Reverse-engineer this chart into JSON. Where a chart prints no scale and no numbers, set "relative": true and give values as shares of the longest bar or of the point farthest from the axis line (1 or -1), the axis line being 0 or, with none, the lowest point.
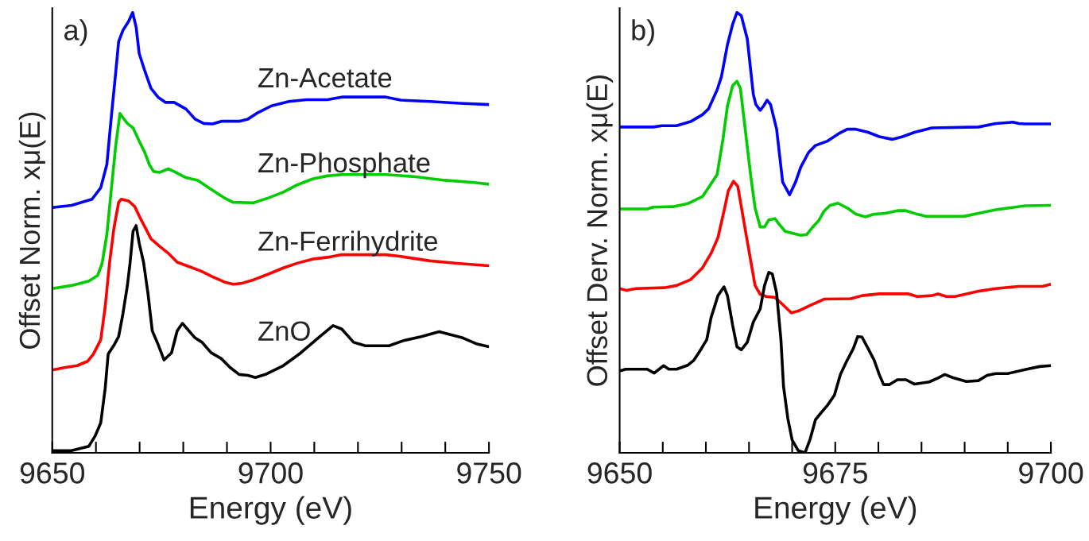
{
  "chart_data": [
    {
      "type": "line",
      "relative": true,
      "xlabel": "Energy (eV)",
      "ylabel": "Offset Norm. xμ(E)",
      "annotations": [
        "a)"
      ],
      "tick_labels": "x",
      "grid": false,
      "legend": false,
      "marker": "none",
      "line_style": "solid",
      "xlim": [
        9650,
        9750
      ],
      "xticks": [
        9650,
        {
          "value": 9660,
          "label": null
        },
        {
          "value": 9670,
          "label": null
        },
        {
          "value": 9680,
          "label": null
        },
        {
          "value": 9690,
          "label": null
        },
        9700,
        {
          "value": 9710,
          "label": null
        },
        {
          "value": 9720,
          "label": null
        },
        {
          "value": 9730,
          "label": null
        },
        {
          "value": 9740,
          "label": null
        },
        9750
      ],
      "series": [
        {
          "name": "Zn-Acetate",
          "color": "#0000ff",
          "x": [
            9650,
            9654.4,
            9659.1,
            9661.1,
            9662.5,
            9663.5,
            9664.5,
            9665.2,
            9666.2,
            9667.5,
            9668.4,
            9669.2,
            9669.9,
            9671.2,
            9672.6,
            9674.2,
            9675.9,
            9677.9,
            9680.6,
            9682.7,
            9684.7,
            9686.7,
            9688.7,
            9692.8,
            9694.8,
            9696.8,
            9700.2,
            9704.2,
            9708.2,
            9713.0,
            9716.3,
            9726.4,
            9729.8,
            9736.5,
            9743.3,
            9750
          ],
          "values": [
            0.557,
            0.562,
            0.576,
            0.602,
            0.655,
            0.761,
            0.861,
            0.934,
            0.96,
            0.98,
            1.0,
            0.967,
            0.907,
            0.867,
            0.828,
            0.808,
            0.796,
            0.796,
            0.781,
            0.758,
            0.748,
            0.747,
            0.753,
            0.753,
            0.758,
            0.771,
            0.788,
            0.798,
            0.802,
            0.802,
            0.808,
            0.808,
            0.801,
            0.798,
            0.794,
            0.791
          ]
        },
        {
          "name": "Zn-Phosphate",
          "color": "#00cc00",
          "x": [
            9650,
            9654.4,
            9658.4,
            9660.4,
            9661.4,
            9662.5,
            9663.5,
            9664.5,
            9665.5,
            9666.2,
            9667.2,
            9668.5,
            9669.9,
            9671.2,
            9672.2,
            9673.2,
            9674.6,
            9676.6,
            9677.9,
            9680.6,
            9683.3,
            9685.4,
            9687.4,
            9689.4,
            9691.4,
            9696.1,
            9699.5,
            9702.9,
            9706.2,
            9709.6,
            9713.0,
            9716.3,
            9726.4,
            9733.2,
            9739.9,
            9746.6,
            9750
          ],
          "values": [
            0.373,
            0.38,
            0.39,
            0.403,
            0.43,
            0.496,
            0.596,
            0.695,
            0.771,
            0.761,
            0.748,
            0.738,
            0.708,
            0.682,
            0.655,
            0.639,
            0.637,
            0.645,
            0.639,
            0.625,
            0.619,
            0.605,
            0.592,
            0.579,
            0.569,
            0.568,
            0.579,
            0.592,
            0.609,
            0.622,
            0.629,
            0.632,
            0.632,
            0.627,
            0.619,
            0.614,
            0.61
          ]
        },
        {
          "name": "Zn-Ferrihydrite",
          "color": "#ff0000",
          "x": [
            9650,
            9653.0,
            9655.7,
            9658.1,
            9659.4,
            9661.1,
            9662.1,
            9663.1,
            9664.1,
            9665.2,
            9665.8,
            9667.5,
            9668.9,
            9670.2,
            9671.2,
            9672.6,
            9674.6,
            9676.6,
            9678.6,
            9681.3,
            9684.0,
            9686.7,
            9689.4,
            9691.4,
            9693.4,
            9696.1,
            9699.5,
            9702.9,
            9706.2,
            9709.6,
            9713.0,
            9716.3,
            9726.4,
            9729.8,
            9736.5,
            9743.3,
            9750
          ],
          "values": [
            0.188,
            0.194,
            0.198,
            0.208,
            0.224,
            0.257,
            0.33,
            0.43,
            0.509,
            0.569,
            0.576,
            0.572,
            0.559,
            0.532,
            0.513,
            0.486,
            0.469,
            0.453,
            0.433,
            0.423,
            0.413,
            0.4,
            0.388,
            0.383,
            0.385,
            0.393,
            0.406,
            0.42,
            0.431,
            0.44,
            0.444,
            0.45,
            0.45,
            0.446,
            0.436,
            0.43,
            0.425
          ]
        },
        {
          "name": "ZnO",
          "color": "#000000",
          "x": [
            9650,
            9654.4,
            9658.4,
            9659.8,
            9661.1,
            9662.1,
            9662.8,
            9664.1,
            9665.2,
            9666.2,
            9667.2,
            9667.8,
            9668.5,
            9669.2,
            9669.9,
            9670.9,
            9671.9,
            9672.9,
            9674.2,
            9675.6,
            9677.3,
            9678.6,
            9679.8,
            9681.3,
            9682.7,
            9684.3,
            9686.4,
            9688.7,
            9690.7,
            9692.8,
            9694.8,
            9696.5,
            9698.8,
            9702.9,
            9706.9,
            9710.9,
            9714.3,
            9716.3,
            9719.0,
            9721.7,
            9727.1,
            9730.5,
            9734.5,
            9738.6,
            9744.0,
            9747.3,
            9750
          ],
          "values": [
            0.005,
            0.005,
            0.015,
            0.038,
            0.068,
            0.145,
            0.224,
            0.244,
            0.264,
            0.317,
            0.38,
            0.43,
            0.503,
            0.516,
            0.476,
            0.433,
            0.363,
            0.277,
            0.247,
            0.211,
            0.227,
            0.277,
            0.294,
            0.277,
            0.261,
            0.251,
            0.227,
            0.214,
            0.194,
            0.178,
            0.176,
            0.171,
            0.178,
            0.198,
            0.227,
            0.261,
            0.289,
            0.281,
            0.251,
            0.243,
            0.243,
            0.255,
            0.264,
            0.275,
            0.261,
            0.247,
            0.241
          ]
        }
      ]
    },
    {
      "type": "line",
      "relative": true,
      "xlabel": "Energy (eV)",
      "ylabel": "Offset Derv. Norm. xμ(E)",
      "annotations": [
        "b)"
      ],
      "tick_labels": "x",
      "grid": false,
      "legend": false,
      "marker": "none",
      "line_style": "solid",
      "xlim": [
        9650,
        9700
      ],
      "xticks": [
        9650,
        {
          "value": 9655,
          "label": null
        },
        {
          "value": 9660,
          "label": null
        },
        {
          "value": 9665,
          "label": null
        },
        {
          "value": 9670,
          "label": null
        },
        9675,
        {
          "value": 9680,
          "label": null
        },
        {
          "value": 9685,
          "label": null
        },
        {
          "value": 9690,
          "label": null
        },
        {
          "value": 9695,
          "label": null
        },
        9700
      ],
      "series": [
        {
          "color": "#0000ff",
          "x": [
            9650,
            9653.9,
            9654.9,
            9656.6,
            9658.3,
            9659.6,
            9660.3,
            9661.3,
            9661.8,
            9662.5,
            9663.1,
            9663.6,
            9664.1,
            9664.8,
            9665.5,
            9665.8,
            9666.3,
            9666.7,
            9667.1,
            9667.5,
            9668.2,
            9668.9,
            9669.7,
            9670.4,
            9671.0,
            9671.9,
            9672.7,
            9674.1,
            9675.4,
            9676.4,
            9677.4,
            9678.8,
            9680.1,
            9681.6,
            9682.8,
            9684.2,
            9686.2,
            9691.6,
            9693.6,
            9695.6,
            9696.3,
            9697.0,
            9700
          ],
          "values": [
            0.74,
            0.74,
            0.743,
            0.743,
            0.753,
            0.768,
            0.781,
            0.824,
            0.854,
            0.927,
            0.973,
            1.0,
            0.993,
            0.94,
            0.814,
            0.791,
            0.778,
            0.788,
            0.801,
            0.791,
            0.735,
            0.615,
            0.586,
            0.615,
            0.649,
            0.682,
            0.698,
            0.708,
            0.725,
            0.735,
            0.735,
            0.728,
            0.718,
            0.712,
            0.718,
            0.728,
            0.738,
            0.74,
            0.748,
            0.751,
            0.748,
            0.747,
            0.747
          ]
        },
        {
          "color": "#00cc00",
          "x": [
            9650,
            9653.2,
            9653.9,
            9656.2,
            9657.9,
            9659.6,
            9660.3,
            9661.3,
            9662.0,
            9662.5,
            9663.1,
            9663.6,
            9664.0,
            9664.6,
            9665.2,
            9665.7,
            9666.3,
            9666.8,
            9667.3,
            9668.0,
            9668.5,
            9669.2,
            9670.0,
            9671.0,
            9671.7,
            9672.4,
            9673.1,
            9673.7,
            9674.4,
            9675.3,
            9676.4,
            9677.4,
            9678.5,
            9679.5,
            9680.8,
            9682.2,
            9683.2,
            9684.5,
            9685.5,
            9689.9,
            9691.6,
            9693.6,
            9697.0,
            9700
          ],
          "values": [
            0.554,
            0.554,
            0.558,
            0.559,
            0.566,
            0.582,
            0.602,
            0.632,
            0.715,
            0.788,
            0.834,
            0.844,
            0.828,
            0.728,
            0.629,
            0.556,
            0.513,
            0.513,
            0.529,
            0.532,
            0.519,
            0.503,
            0.499,
            0.494,
            0.496,
            0.513,
            0.528,
            0.549,
            0.562,
            0.567,
            0.556,
            0.542,
            0.536,
            0.542,
            0.544,
            0.55,
            0.55,
            0.542,
            0.537,
            0.537,
            0.544,
            0.552,
            0.561,
            0.562
          ]
        },
        {
          "color": "#ff0000",
          "x": [
            9650,
            9650.8,
            9651.9,
            9655.2,
            9656.6,
            9658.2,
            9659.6,
            9660.6,
            9661.4,
            9662.1,
            9662.6,
            9663.2,
            9663.7,
            9664.6,
            9665.2,
            9665.7,
            9666.3,
            9667.0,
            9668.0,
            9668.9,
            9669.9,
            9670.7,
            9672.1,
            9673.7,
            9676.8,
            9678.1,
            9680.1,
            9683.5,
            9684.5,
            9686.2,
            9686.9,
            9687.9,
            9688.9,
            9691.6,
            9693.6,
            9696.3,
            9699.0,
            9700
          ],
          "values": [
            0.373,
            0.369,
            0.373,
            0.375,
            0.38,
            0.393,
            0.42,
            0.453,
            0.489,
            0.549,
            0.595,
            0.617,
            0.605,
            0.503,
            0.436,
            0.38,
            0.36,
            0.355,
            0.353,
            0.337,
            0.318,
            0.322,
            0.335,
            0.349,
            0.35,
            0.357,
            0.361,
            0.361,
            0.355,
            0.357,
            0.361,
            0.355,
            0.355,
            0.367,
            0.373,
            0.378,
            0.378,
            0.383
          ]
        },
        {
          "color": "#000000",
          "x": [
            9650,
            9650.7,
            9653.2,
            9654.0,
            9655.1,
            9655.7,
            9656.6,
            9657.9,
            9658.6,
            9659.3,
            9660.1,
            9660.6,
            9661.4,
            9662.1,
            9662.5,
            9663.1,
            9663.6,
            9664.1,
            9664.8,
            9665.5,
            9666.3,
            9666.8,
            9667.3,
            9667.7,
            9668.2,
            9668.7,
            9669.0,
            9669.5,
            9670.0,
            9670.7,
            9671.5,
            9672.1,
            9672.7,
            9673.4,
            9674.1,
            9674.9,
            9675.6,
            9676.4,
            9677.1,
            9677.6,
            9678.1,
            9678.8,
            9679.5,
            9680.1,
            9680.6,
            9681.3,
            9682.2,
            9683.2,
            9684.2,
            9685.9,
            9686.9,
            9687.7,
            9688.6,
            9690.2,
            9691.6,
            9692.6,
            9693.6,
            9695.0,
            9697.0,
            9698.7,
            9700
          ],
          "values": [
            0.186,
            0.19,
            0.19,
            0.181,
            0.198,
            0.19,
            0.19,
            0.199,
            0.21,
            0.231,
            0.257,
            0.307,
            0.357,
            0.377,
            0.357,
            0.29,
            0.241,
            0.234,
            0.251,
            0.297,
            0.327,
            0.38,
            0.41,
            0.406,
            0.363,
            0.257,
            0.151,
            0.078,
            0.029,
            0.005,
            0,
            0.032,
            0.075,
            0.092,
            0.108,
            0.131,
            0.178,
            0.211,
            0.237,
            0.264,
            0.263,
            0.237,
            0.211,
            0.178,
            0.155,
            0.155,
            0.166,
            0.166,
            0.156,
            0.161,
            0.17,
            0.178,
            0.171,
            0.162,
            0.164,
            0.176,
            0.18,
            0.18,
            0.189,
            0.196,
            0.198
          ]
        }
      ]
    }
  ]
}
